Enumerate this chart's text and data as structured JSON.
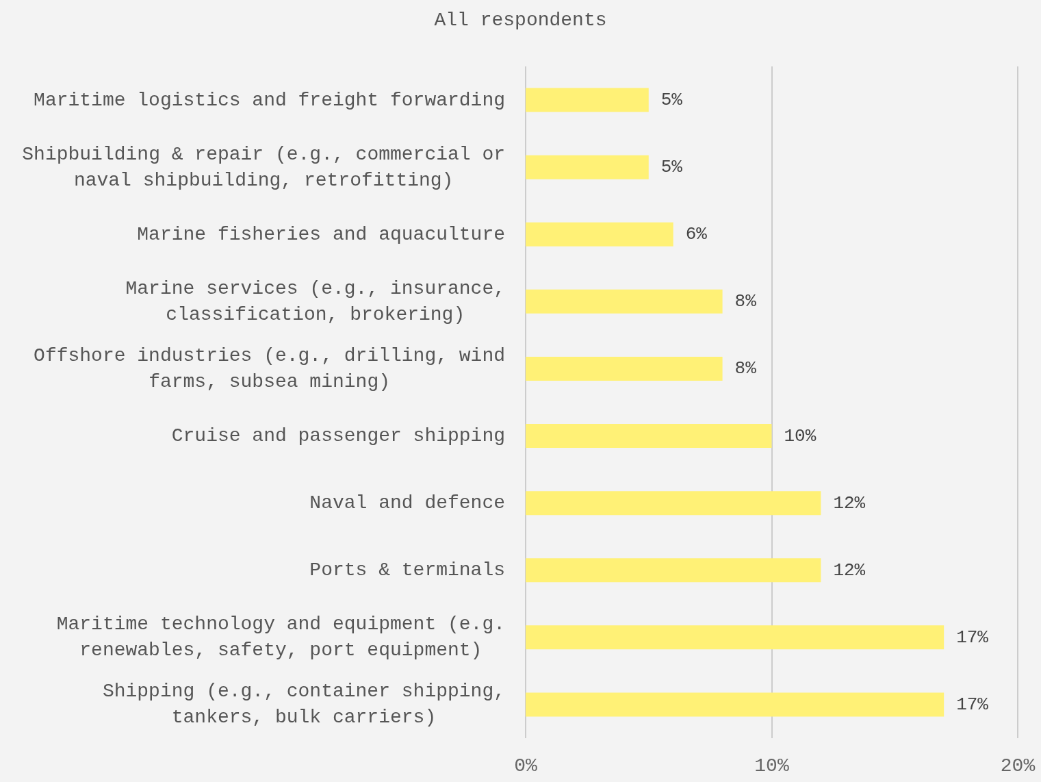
{
  "chart_data": {
    "type": "bar",
    "orientation": "horizontal",
    "title": "All respondents",
    "categories": [
      "Maritime logistics and freight forwarding",
      "Shipbuilding & repair (e.g., commercial or naval shipbuilding, retrofitting)",
      "Marine fisheries and aquaculture",
      "Marine services (e.g., insurance, classification, brokering)",
      "Offshore industries (e.g., drilling, wind farms, subsea mining)",
      "Cruise and passenger shipping",
      "Naval and defence",
      "Ports & terminals",
      "Maritime technology and equipment (e.g. renewables, safety, port equipment)",
      "Shipping (e.g., container shipping, tankers, bulk carriers)"
    ],
    "values": [
      5,
      5,
      6,
      8,
      8,
      10,
      12,
      12,
      17,
      17
    ],
    "value_labels": [
      "5%",
      "5%",
      "6%",
      "8%",
      "8%",
      "10%",
      "12%",
      "12%",
      "17%",
      "17%"
    ],
    "color": "#fff176",
    "xlim": [
      0,
      20
    ],
    "xticks": [
      {
        "value": 0,
        "label": "0%"
      },
      {
        "value": 10,
        "label": "10%"
      },
      {
        "value": 20,
        "label": "20%"
      }
    ],
    "grid": "x"
  }
}
